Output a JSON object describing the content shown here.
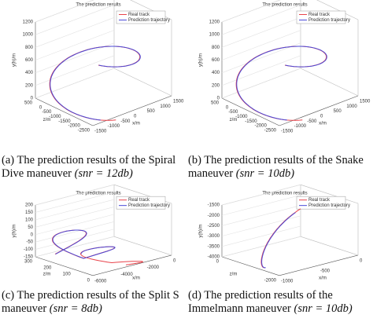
{
  "panels": [
    {
      "title": "The prediction results",
      "legend": [
        "Real track",
        "Prediction trajectory"
      ],
      "vlabel": "y(h)/m",
      "zlabel": "z/m",
      "xlabel": "x/m",
      "vticks": [
        "0",
        "200",
        "400",
        "600",
        "800",
        "1000",
        "1200"
      ],
      "zticks": [
        "500",
        "0",
        "-500",
        "-1000",
        "-1500",
        "-2000",
        "-2500"
      ],
      "xticks": [
        "-1500",
        "-1000",
        "-500",
        "0",
        "500",
        "1000",
        "1500"
      ],
      "caption": {
        "label": "(a)",
        "text": "The prediction results of the Spiral Dive maneuver",
        "math": "(snr = 12db)"
      }
    },
    {
      "title": "The prediction results",
      "legend": [
        "Real track",
        "Prediction trajectory"
      ],
      "vlabel": "y(h)/m",
      "zlabel": "z/m",
      "xlabel": "x/m",
      "vticks": [
        "0",
        "200",
        "400",
        "600",
        "800",
        "1000",
        "1200"
      ],
      "zticks": [
        "500",
        "0",
        "-500",
        "-1000",
        "-1500",
        "-2000",
        "-2500"
      ],
      "xticks": [
        "-1500",
        "-1000",
        "-500",
        "0",
        "500",
        "1000",
        "1500"
      ],
      "caption": {
        "label": "(b)",
        "text": "The prediction results of the Snake maneuver",
        "math": "(snr = 10db)"
      }
    },
    {
      "title": "The prediction results",
      "legend": [
        "Real track",
        "Prediction trajectory"
      ],
      "vlabel": "y(h)/m",
      "zlabel": "z/m",
      "xlabel": "x/m",
      "vticks": [
        "-150",
        "-100",
        "-50",
        "0",
        "50",
        "100",
        "150",
        "200"
      ],
      "zticks": [
        "300",
        "200",
        "100",
        "0"
      ],
      "xticks": [
        "-6000",
        "-4000",
        "-2000",
        "0"
      ],
      "caption": {
        "label": "(c)",
        "text": "The prediction results of the Split S maneuver",
        "math": "(snr = 8db)"
      }
    },
    {
      "title": "The prediction results",
      "legend": [
        "Real track",
        "Prediction trajectory"
      ],
      "vlabel": "y(h)/m",
      "zlabel": "z/m",
      "xlabel": "x/m",
      "vticks": [
        "-4000",
        "-3500",
        "-3000",
        "-2500",
        "-2000",
        "-1500"
      ],
      "zticks": [
        "0",
        "-2000"
      ],
      "xticks": [
        "-1000",
        "-500",
        "0"
      ],
      "caption": {
        "label": "(d)",
        "text": "The prediction results of the Immelmann maneuver",
        "math": "(snr = 10db)"
      }
    }
  ]
}
